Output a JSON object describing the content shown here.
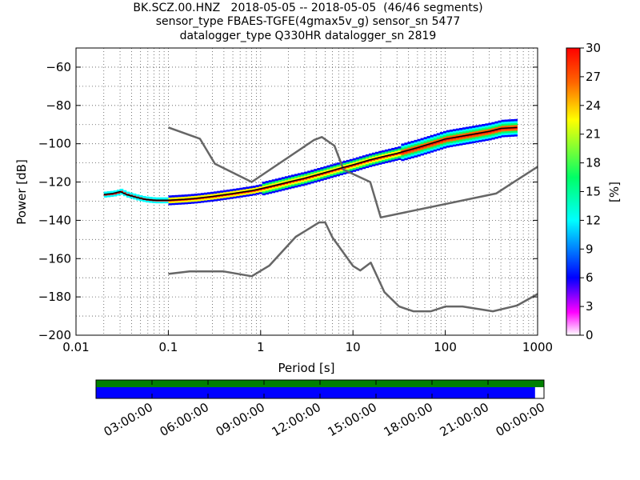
{
  "title": {
    "line1": "BK.SCZ.00.HNZ   2018-05-05 -- 2018-05-05  (46/46 segments)",
    "line2": "sensor_type FBAES-TGFE(4gmax5v_g) sensor_sn 5477",
    "line3": "datalogger_type Q330HR datalogger_sn 2819"
  },
  "chart_data": {
    "type": "heatmap",
    "xlabel": "Period [s]",
    "ylabel": "Power [dB]",
    "xscale": "log",
    "xlim": [
      0.01,
      1000
    ],
    "ylim": [
      -200,
      -50
    ],
    "grid": "dotted, on",
    "x_ticks": [
      "0.01",
      "0.1",
      "1",
      "10",
      "100",
      "1000"
    ],
    "y_ticks": [
      "−60",
      "−80",
      "−100",
      "−120",
      "−140",
      "−160",
      "−180",
      "−200"
    ],
    "colorbar": {
      "label": "[%]",
      "range": [
        0,
        30
      ],
      "ticks": [
        "0",
        "3",
        "6",
        "9",
        "12",
        "15",
        "18",
        "21",
        "24",
        "27",
        "30"
      ],
      "colors": [
        "#ffffff",
        "#ff00ff",
        "#0000ff",
        "#00ffff",
        "#00ff66",
        "#ffff00",
        "#ff6600",
        "#ff0000"
      ]
    },
    "mode_curve": {
      "period": [
        0.02,
        0.025,
        0.03,
        0.035,
        0.045,
        0.055,
        0.07,
        0.1,
        0.15,
        0.2,
        0.3,
        0.5,
        0.8,
        1,
        1.5,
        2,
        3,
        5,
        7,
        10,
        15,
        20,
        30,
        50,
        80,
        100,
        200,
        300,
        400,
        600
      ],
      "power": [
        -126.5,
        -126,
        -125,
        -126.5,
        -128,
        -129,
        -129.5,
        -129.5,
        -129,
        -128.5,
        -127.5,
        -126,
        -124.5,
        -123.5,
        -121.5,
        -120,
        -118,
        -115,
        -113,
        -111,
        -108.5,
        -107,
        -105,
        -102,
        -99,
        -97.5,
        -95,
        -93.5,
        -92,
        -91.5
      ]
    },
    "nhnm": {
      "period": [
        0.1,
        0.22,
        0.32,
        0.8,
        3.8,
        4.6,
        6.3,
        7.9,
        15.4,
        20,
        354.8,
        1000
      ],
      "power": [
        -91.5,
        -97.4,
        -110.5,
        -120,
        -98,
        -96.5,
        -101,
        -113.5,
        -120,
        -138.5,
        -126,
        -112
      ]
    },
    "nlnm": {
      "period": [
        0.1,
        0.17,
        0.4,
        0.8,
        1.24,
        2.4,
        4.3,
        5,
        6,
        10,
        12,
        15.6,
        21.9,
        31.6,
        45,
        70,
        101,
        154,
        328,
        600,
        1000
      ],
      "power": [
        -168,
        -166.7,
        -166.7,
        -169.2,
        -163.7,
        -148.6,
        -141.1,
        -141.1,
        -149,
        -163.8,
        -166.2,
        -162.1,
        -177.5,
        -185,
        -187.5,
        -187.5,
        -185,
        -185,
        -187.5,
        -184.5,
        -178.5
      ]
    },
    "time_axis": {
      "ticks": [
        "03:00:00",
        "06:00:00",
        "09:00:00",
        "12:00:00",
        "15:00:00",
        "18:00:00",
        "21:00:00",
        "00:00:00"
      ],
      "data_coverage_color": "#008000",
      "psd_coverage_color": "#0000ff",
      "psd_coverage_fraction": 0.98
    }
  }
}
